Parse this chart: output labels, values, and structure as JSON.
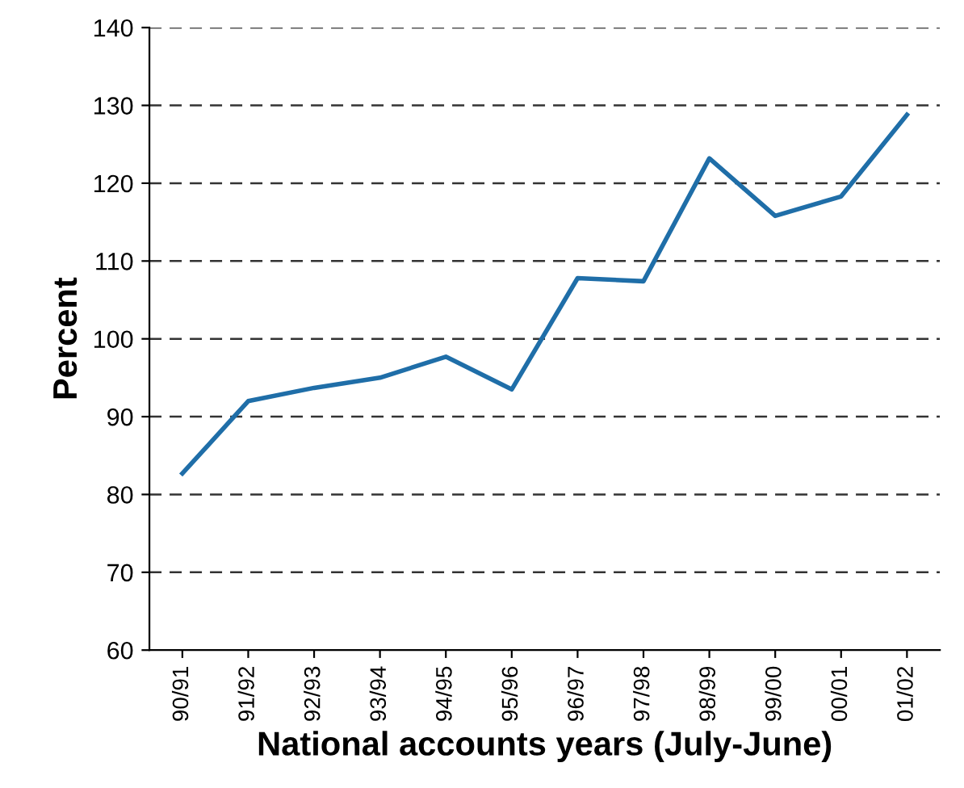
{
  "chart_data": {
    "type": "line",
    "xlabel": "National accounts years (July-June)",
    "ylabel": "Percent",
    "categories": [
      "90/91",
      "91/92",
      "92/93",
      "93/94",
      "94/95",
      "95/96",
      "96/97",
      "97/98",
      "98/99",
      "99/00",
      "00/01",
      "01/02"
    ],
    "series": [
      {
        "color": "#1f6ea8",
        "values": [
          82.7,
          92,
          93.7,
          95,
          97.7,
          93.5,
          107.8,
          107.4,
          123.2,
          115.8,
          118.3,
          128.8
        ]
      }
    ],
    "ylim": [
      60,
      140
    ],
    "yticks": [
      60,
      70,
      80,
      90,
      100,
      110,
      120,
      130,
      140
    ],
    "grid": "y",
    "line_style": "solid",
    "marker": "none",
    "legend": false
  }
}
